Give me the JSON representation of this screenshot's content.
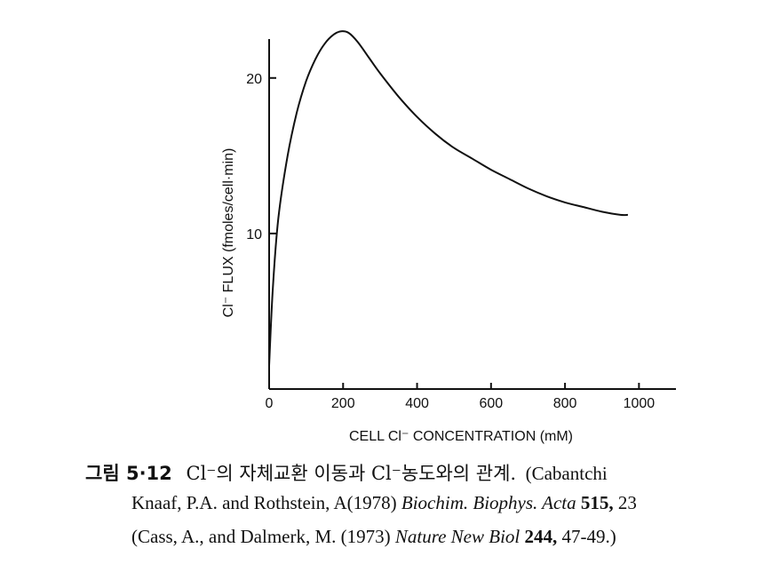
{
  "chart_data": {
    "type": "line",
    "xlabel": "CELL Cl⁻ CONCENTRATION (mM)",
    "ylabel": "Cl⁻ FLUX (fmoles/cell·min)",
    "xlim": [
      0,
      1100
    ],
    "ylim": [
      0,
      22.5
    ],
    "x_ticks": [
      0,
      200,
      400,
      600,
      800,
      1000
    ],
    "y_ticks": [
      10,
      20
    ],
    "grid": false,
    "series": [
      {
        "x": [
          0,
          10,
          25,
          50,
          75,
          100,
          125,
          150,
          175,
          195,
          215,
          240,
          270,
          300,
          350,
          400,
          450,
          500,
          550,
          600,
          650,
          700,
          750,
          800,
          850,
          900,
          950,
          970
        ],
        "y": [
          1.5,
          6.5,
          11.0,
          15.0,
          17.8,
          19.8,
          21.2,
          22.2,
          22.8,
          23.0,
          22.9,
          22.3,
          21.3,
          20.3,
          18.8,
          17.5,
          16.4,
          15.5,
          14.8,
          14.1,
          13.5,
          12.9,
          12.4,
          12.0,
          11.7,
          11.4,
          11.2,
          11.2
        ]
      }
    ]
  },
  "caption": {
    "fig_no": "그림 5·12",
    "line1_text": "Cl⁻의 자체교환 이동과 Cl⁻농도와의 관계.",
    "line1_ref": "(Cabantchi",
    "line2_a": "Knaaf, P.A. and Rothstein, A(1978)",
    "line2_journal": "Biochim. Biophys. Acta",
    "line2_vol": "515,",
    "line2_pages": "23",
    "line3_a": "(Cass, A., and Dalmerk, M. (1973)",
    "line3_journal": "Nature New Biol",
    "line3_vol": "244,",
    "line3_pages": "47-49.)"
  }
}
